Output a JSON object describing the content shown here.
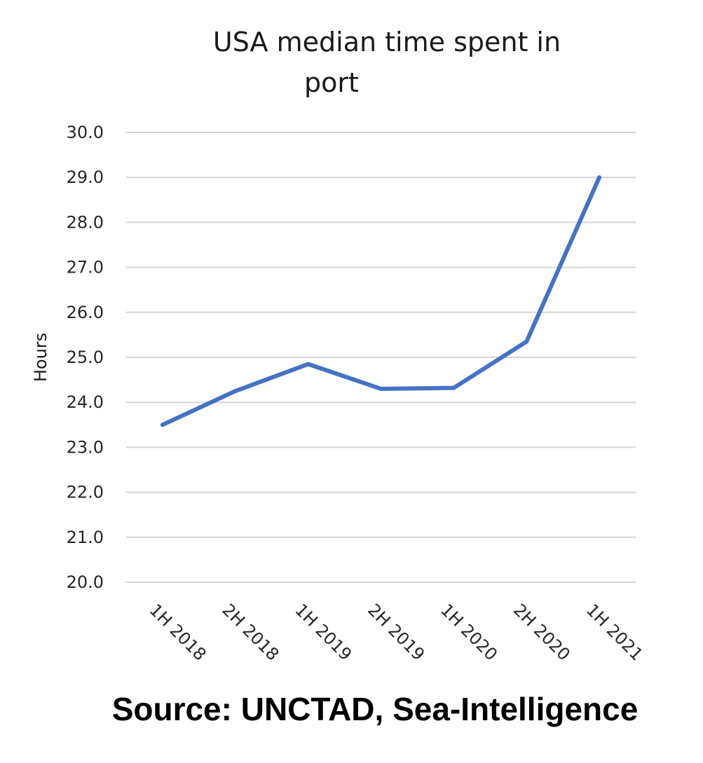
{
  "chart_data": {
    "type": "line",
    "title_lines": [
      "USA median time spent in",
      "port"
    ],
    "xlabel": "",
    "ylabel": "Hours",
    "categories": [
      "1H 2018",
      "2H 2018",
      "1H 2019",
      "2H 2019",
      "1H 2020",
      "2H 2020",
      "1H 2021"
    ],
    "series": [
      {
        "values": [
          23.5,
          24.25,
          24.85,
          24.3,
          24.32,
          25.35,
          29.0
        ]
      }
    ],
    "ylim": [
      20.0,
      30.0
    ],
    "yticks": [
      "20.0",
      "21.0",
      "22.0",
      "23.0",
      "24.0",
      "25.0",
      "26.0",
      "27.0",
      "28.0",
      "29.0",
      "30.0"
    ],
    "grid": true,
    "legend": "none",
    "series_color": "#4472c4"
  },
  "source": "Source: UNCTAD, Sea-Intelligence"
}
